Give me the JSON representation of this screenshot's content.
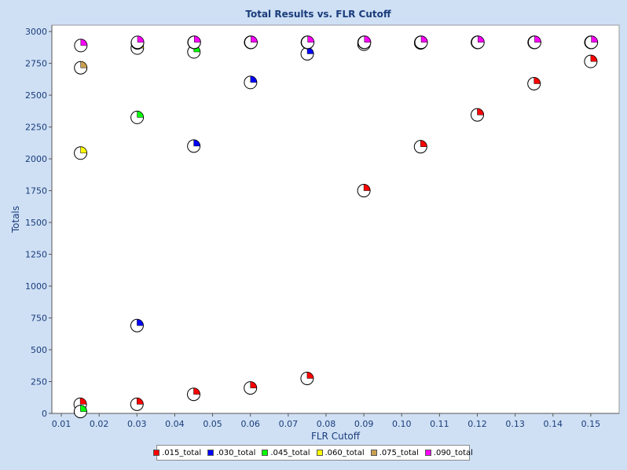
{
  "chart_data": {
    "type": "scatter",
    "title": "Total Results vs. FLR Cutoff",
    "xlabel": "FLR Cutoff",
    "ylabel": "Totals",
    "xlim": [
      0.0075,
      0.1575
    ],
    "ylim": [
      0,
      3050
    ],
    "x_ticks": [
      "0.01",
      "0.02",
      "0.03",
      "0.04",
      "0.05",
      "0.06",
      "0.07",
      "0.08",
      "0.09",
      "0.10",
      "0.11",
      "0.12",
      "0.13",
      "0.14",
      "0.15"
    ],
    "y_ticks": [
      "0",
      "250",
      "500",
      "750",
      "1000",
      "1250",
      "1500",
      "1750",
      "2000",
      "2250",
      "2500",
      "2750",
      "3000"
    ],
    "legend_position": "bottom",
    "series": [
      {
        "name": ".015_total",
        "color": "#ff0000",
        "points": [
          [
            0.015,
            72
          ],
          [
            0.03,
            72
          ],
          [
            0.045,
            150
          ],
          [
            0.06,
            200
          ],
          [
            0.075,
            275
          ],
          [
            0.09,
            1750
          ],
          [
            0.105,
            2095
          ],
          [
            0.12,
            2345
          ],
          [
            0.135,
            2590
          ],
          [
            0.15,
            2765
          ]
        ]
      },
      {
        "name": ".030_total",
        "color": "#0000ff",
        "points": [
          [
            0.03,
            690
          ],
          [
            0.045,
            2100
          ],
          [
            0.06,
            2600
          ],
          [
            0.075,
            2825
          ],
          [
            0.09,
            2900
          ],
          [
            0.105,
            2910
          ],
          [
            0.12,
            2915
          ],
          [
            0.135,
            2915
          ],
          [
            0.15,
            2915
          ]
        ]
      },
      {
        "name": ".045_total",
        "color": "#00ff00",
        "points": [
          [
            0.015,
            15
          ],
          [
            0.03,
            2325
          ],
          [
            0.045,
            2840
          ],
          [
            0.06,
            2915
          ],
          [
            0.075,
            2915
          ],
          [
            0.09,
            2915
          ],
          [
            0.105,
            2915
          ],
          [
            0.12,
            2915
          ],
          [
            0.135,
            2915
          ],
          [
            0.15,
            2915
          ]
        ]
      },
      {
        "name": ".060_total",
        "color": "#ffff00",
        "points": [
          [
            0.015,
            2045
          ],
          [
            0.03,
            2870
          ],
          [
            0.045,
            2915
          ],
          [
            0.06,
            2915
          ],
          [
            0.075,
            2915
          ],
          [
            0.09,
            2915
          ],
          [
            0.105,
            2915
          ],
          [
            0.12,
            2915
          ],
          [
            0.135,
            2915
          ],
          [
            0.15,
            2915
          ]
        ]
      },
      {
        "name": ".075_total",
        "color": "#c8a050",
        "points": [
          [
            0.015,
            2715
          ],
          [
            0.03,
            2910
          ],
          [
            0.045,
            2915
          ],
          [
            0.06,
            2915
          ],
          [
            0.075,
            2915
          ],
          [
            0.09,
            2915
          ],
          [
            0.105,
            2915
          ],
          [
            0.12,
            2915
          ],
          [
            0.135,
            2915
          ],
          [
            0.15,
            2915
          ]
        ]
      },
      {
        "name": ".090_total",
        "color": "#ff00ff",
        "points": [
          [
            0.015,
            2890
          ],
          [
            0.03,
            2915
          ],
          [
            0.045,
            2915
          ],
          [
            0.06,
            2915
          ],
          [
            0.075,
            2915
          ],
          [
            0.09,
            2915
          ],
          [
            0.105,
            2915
          ],
          [
            0.12,
            2915
          ],
          [
            0.135,
            2915
          ],
          [
            0.15,
            2915
          ]
        ]
      }
    ]
  }
}
